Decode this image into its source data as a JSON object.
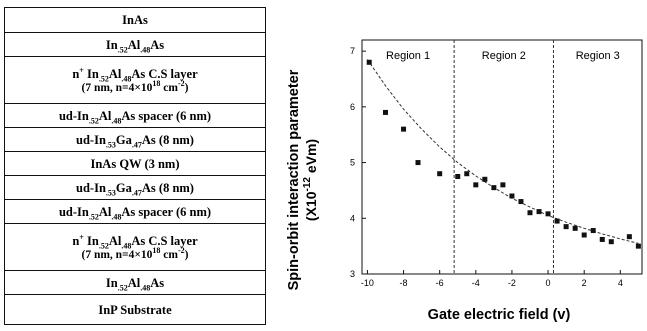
{
  "layer_stack": {
    "layers": [
      {
        "base": "InAs"
      },
      {
        "base": "In",
        "parts": [
          {
            "sub": ".52"
          },
          {
            "t": "Al"
          },
          {
            "sub": ".48"
          },
          {
            "t": "As"
          }
        ]
      },
      {
        "base": "n",
        "parts": [
          {
            "sup": "+"
          },
          {
            "t": " In"
          },
          {
            "sub": ".52"
          },
          {
            "t": "Al"
          },
          {
            "sub": ".48"
          },
          {
            "t": "As C.S layer"
          }
        ],
        "line2": {
          "base": "(7 nm, n=4×10",
          "parts": [
            {
              "sup": "18"
            },
            {
              "t": " cm"
            },
            {
              "sup": "-2"
            },
            {
              "t": ")"
            }
          ]
        }
      },
      {
        "base": "ud-In",
        "parts": [
          {
            "sub": ".52"
          },
          {
            "t": "Al"
          },
          {
            "sub": ".48"
          },
          {
            "t": "As spacer (6 nm)"
          }
        ]
      },
      {
        "base": "ud-In",
        "parts": [
          {
            "sub": ".53"
          },
          {
            "t": "Ga"
          },
          {
            "sub": ".47"
          },
          {
            "t": "As (8 nm)"
          }
        ]
      },
      {
        "base": "InAs QW (3 nm)"
      },
      {
        "base": "ud-In",
        "parts": [
          {
            "sub": ".53"
          },
          {
            "t": "Ga"
          },
          {
            "sub": ".47"
          },
          {
            "t": "As (8 nm)"
          }
        ]
      },
      {
        "base": "ud-In",
        "parts": [
          {
            "sub": ".52"
          },
          {
            "t": "Al"
          },
          {
            "sub": ".48"
          },
          {
            "t": "As spacer (6 nm)"
          }
        ]
      },
      {
        "base": "n",
        "parts": [
          {
            "sup": "+"
          },
          {
            "t": " In"
          },
          {
            "sub": ".52"
          },
          {
            "t": "Al"
          },
          {
            "sub": ".48"
          },
          {
            "t": "As C.S layer"
          }
        ],
        "line2": {
          "base": "(7 nm, n=4×10",
          "parts": [
            {
              "sup": "18"
            },
            {
              "t": " cm"
            },
            {
              "sup": "-2"
            },
            {
              "t": ")"
            }
          ]
        }
      },
      {
        "base": "In",
        "parts": [
          {
            "sub": ".52"
          },
          {
            "t": "Al"
          },
          {
            "sub": ".48"
          },
          {
            "t": "As"
          }
        ]
      },
      {
        "base": "InP Substrate"
      }
    ]
  },
  "chart_data": {
    "type": "scatter",
    "ylabel_line1": "Spin-orbit interaction parameter",
    "ylabel_line2_pre": "(X10",
    "ylabel_line2_sup": "-12",
    "ylabel_line2_post": " eVm)",
    "xlabel": "Gate electric field (v)",
    "xlim": [
      -10.3,
      5.2
    ],
    "ylim": [
      3,
      7.2
    ],
    "xticks": [
      -10,
      -8,
      -6,
      -4,
      -2,
      0,
      2,
      4
    ],
    "xtick_labels": [
      "-10",
      "-8",
      "-6",
      "-4",
      "-2",
      "0",
      "2",
      "4"
    ],
    "yticks": [
      3,
      4,
      5,
      6,
      7
    ],
    "ytick_labels": [
      "3",
      "4",
      "5",
      "6",
      "7"
    ],
    "region_boundaries": [
      -5.2,
      0.3
    ],
    "regions": [
      "Region 1",
      "Region 2",
      "Region 3"
    ],
    "grid": false,
    "marker_color": "#111111",
    "series": [
      {
        "x": [
          -9.9,
          -9.0,
          -8.0,
          -7.2,
          -6.0,
          -5.0,
          -4.5,
          -4.0,
          -3.5,
          -3.0,
          -2.5,
          -2.0,
          -1.5,
          -1.0,
          -0.5,
          0.0,
          0.5,
          1.0,
          1.5,
          2.0,
          2.5,
          3.0,
          3.5,
          4.5,
          5.0
        ],
        "y": [
          6.8,
          5.9,
          5.6,
          5.0,
          4.8,
          4.75,
          4.8,
          4.6,
          4.7,
          4.55,
          4.6,
          4.4,
          4.3,
          4.1,
          4.12,
          4.08,
          3.95,
          3.85,
          3.82,
          3.7,
          3.78,
          3.62,
          3.58,
          3.67,
          3.5
        ]
      }
    ],
    "fit_curve": {
      "style": "dashed",
      "x": [
        -10,
        -9,
        -8,
        -7,
        -6,
        -5,
        -4,
        -3,
        -2,
        -1,
        0,
        1,
        2,
        3,
        4,
        5
      ],
      "y": [
        6.85,
        6.38,
        5.96,
        5.6,
        5.28,
        5.0,
        4.76,
        4.55,
        4.36,
        4.2,
        4.05,
        3.93,
        3.82,
        3.72,
        3.63,
        3.55
      ]
    }
  }
}
